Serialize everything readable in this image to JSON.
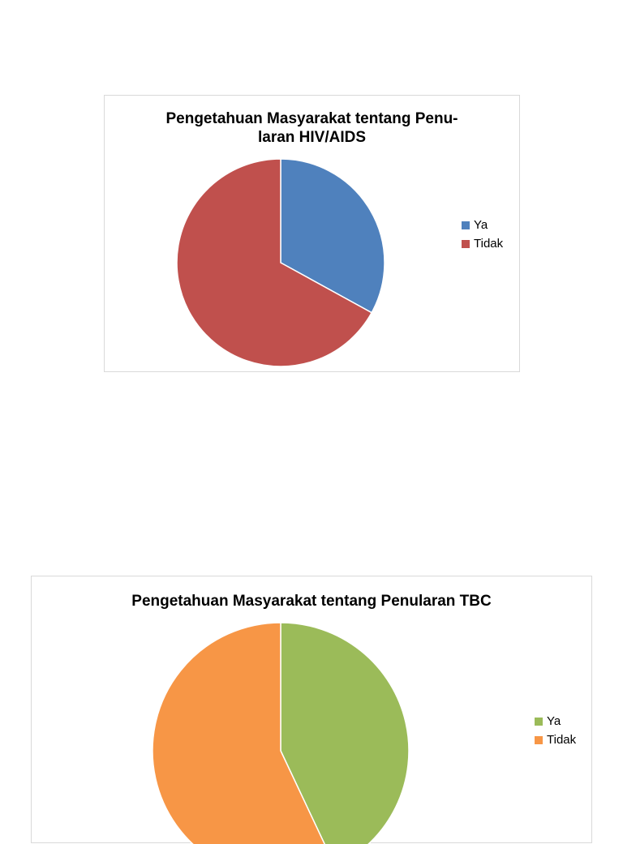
{
  "chart_data": [
    {
      "type": "pie",
      "title": "Pengetahuan Masyarakat tentang Penu-\nlaran HIV/AIDS",
      "categories": [
        "Ya",
        "Tidak"
      ],
      "values": [
        33,
        67
      ],
      "colors": [
        "#4f81bd",
        "#c0504d"
      ],
      "legend_position": "right"
    },
    {
      "type": "pie",
      "title": "Pengetahuan Masyarakat tentang Penularan TBC",
      "categories": [
        "Ya",
        "Tidak"
      ],
      "values": [
        43,
        57
      ],
      "colors": [
        "#9bbb59",
        "#f79646"
      ],
      "legend_position": "right"
    }
  ]
}
